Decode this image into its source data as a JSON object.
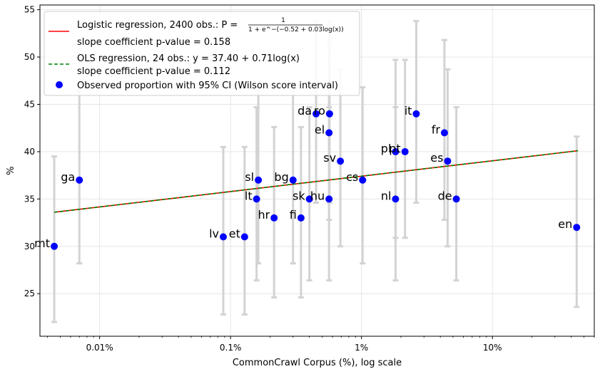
{
  "chart_data": {
    "type": "scatter",
    "xlabel": "CommonCrawl Corpus (%), log scale",
    "ylabel": "%",
    "xscale": "log",
    "xlim": [
      0.0035,
      60
    ],
    "ylim": [
      20.5,
      55.5
    ],
    "xticks": [
      {
        "value": 0.01,
        "label": "0.01%"
      },
      {
        "value": 0.1,
        "label": "0.1%"
      },
      {
        "value": 1,
        "label": "1%"
      },
      {
        "value": 10,
        "label": "10%"
      }
    ],
    "yticks": [
      25,
      30,
      35,
      40,
      45,
      50,
      55
    ],
    "grid": true,
    "legend_position": "top-left",
    "legend": {
      "logistic": "Logistic regression, 2400 obs.: P =",
      "logistic_fraction_num": "1",
      "logistic_fraction_den": "1 + e^−(−0.52 + 0.03log(x))",
      "logistic_pvalue": "slope coefficient p-value = 0.158",
      "ols": "OLS regression, 24 obs.: y = 37.40 + 0.71log(x)",
      "ols_pvalue": "slope coefficient p-value = 0.112",
      "observed": "Observed proportion with 95% CI (Wilson score interval)"
    },
    "colors": {
      "logistic": "#ff0000",
      "ols": "#008000",
      "points": "#0000ff",
      "errorbars": "#d3d3d3",
      "grid": "#e6e6e6"
    },
    "regression_line": {
      "x_start": 0.0045,
      "y_start": 33.6,
      "x_end": 45,
      "y_end": 40.1
    },
    "points": [
      {
        "label": "mt",
        "x": 0.0045,
        "y": 30,
        "lo": 22,
        "hi": 39.5
      },
      {
        "label": "ga",
        "x": 0.007,
        "y": 37,
        "lo": 28.2,
        "hi": 46.5
      },
      {
        "label": "lv",
        "x": 0.088,
        "y": 31,
        "lo": 22.8,
        "hi": 40.5
      },
      {
        "label": "et",
        "x": 0.128,
        "y": 31,
        "lo": 22.8,
        "hi": 40.5
      },
      {
        "label": "lt",
        "x": 0.158,
        "y": 35,
        "lo": 26.4,
        "hi": 44.7
      },
      {
        "label": "sl",
        "x": 0.163,
        "y": 37,
        "lo": 28.2,
        "hi": 46.5
      },
      {
        "label": "hr",
        "x": 0.215,
        "y": 33,
        "lo": 24.6,
        "hi": 42.6
      },
      {
        "label": "bg",
        "x": 0.3,
        "y": 37,
        "lo": 28.2,
        "hi": 46.5
      },
      {
        "label": "fi",
        "x": 0.345,
        "y": 33,
        "lo": 24.6,
        "hi": 42.6
      },
      {
        "label": "sk",
        "x": 0.4,
        "y": 35,
        "lo": 26.4,
        "hi": 44.7
      },
      {
        "label": "da",
        "x": 0.45,
        "y": 44,
        "lo": 34.6,
        "hi": 53.8
      },
      {
        "label": "ro",
        "x": 0.57,
        "y": 44,
        "lo": 34.6,
        "hi": 53.8
      },
      {
        "label": "el",
        "x": 0.565,
        "y": 42,
        "lo": 32.8,
        "hi": 51.8
      },
      {
        "label": "hu",
        "x": 0.565,
        "y": 35,
        "lo": 26.4,
        "hi": 44.7
      },
      {
        "label": "sv",
        "x": 0.69,
        "y": 39,
        "lo": 30,
        "hi": 48.7
      },
      {
        "label": "cs",
        "x": 1.02,
        "y": 37,
        "lo": 28.2,
        "hi": 46.8
      },
      {
        "label": "pl",
        "x": 1.82,
        "y": 40,
        "lo": 30.9,
        "hi": 49.7
      },
      {
        "label": "pt",
        "x": 2.15,
        "y": 40,
        "lo": 30.9,
        "hi": 49.7
      },
      {
        "label": "nl",
        "x": 1.82,
        "y": 35,
        "lo": 26.4,
        "hi": 44.7
      },
      {
        "label": "it",
        "x": 2.62,
        "y": 44,
        "lo": 34.6,
        "hi": 53.8
      },
      {
        "label": "fr",
        "x": 4.3,
        "y": 42,
        "lo": 32.8,
        "hi": 51.8
      },
      {
        "label": "es",
        "x": 4.55,
        "y": 39,
        "lo": 30,
        "hi": 48.7
      },
      {
        "label": "de",
        "x": 5.3,
        "y": 35,
        "lo": 26.4,
        "hi": 44.7
      },
      {
        "label": "en",
        "x": 44,
        "y": 32,
        "lo": 23.6,
        "hi": 41.6
      }
    ]
  }
}
